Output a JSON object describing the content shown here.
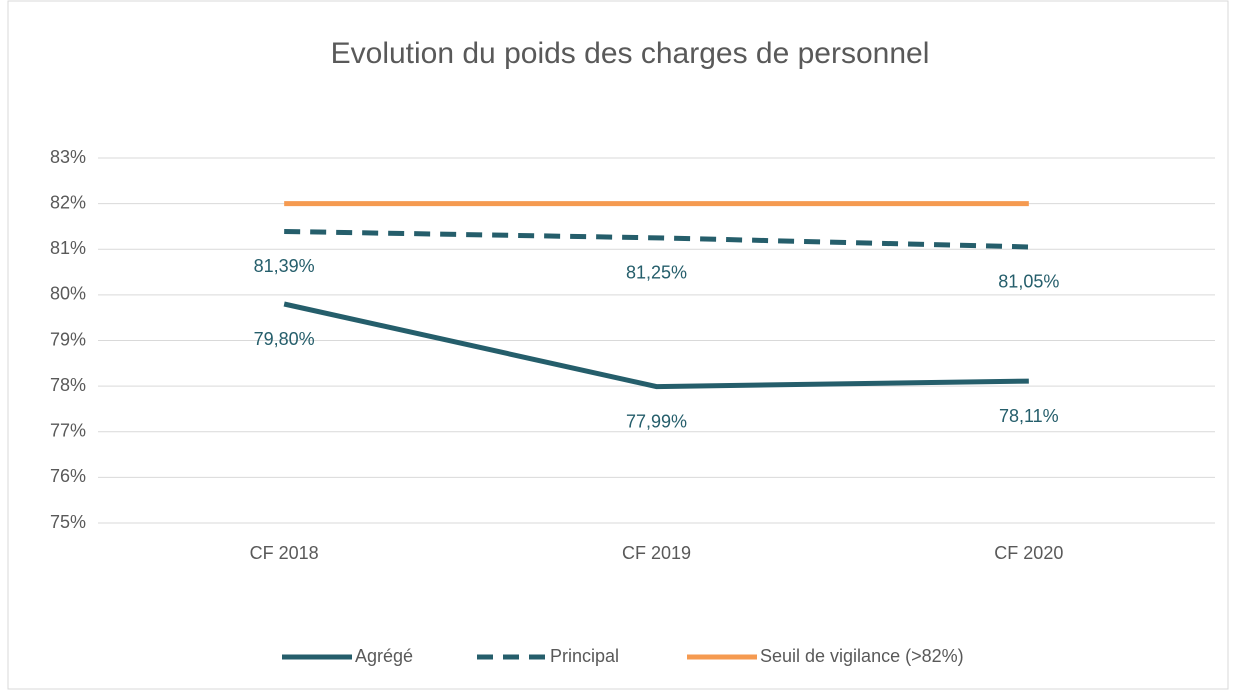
{
  "chart_data": {
    "type": "line",
    "title": "Evolution du poids des charges de personnel",
    "categories": [
      "CF 2018",
      "CF 2019",
      "CF 2020"
    ],
    "series": [
      {
        "name": "Agrégé",
        "color": "#255e6b",
        "dash": false,
        "values": [
          79.8,
          77.99,
          78.11
        ],
        "value_labels": [
          "79,80%",
          "77,99%",
          "78,11%"
        ]
      },
      {
        "name": "Principal",
        "color": "#255e6b",
        "dash": true,
        "values": [
          81.39,
          81.25,
          81.05
        ],
        "value_labels": [
          "81,39%",
          "81,25%",
          "81,05%"
        ]
      },
      {
        "name": "Seuil de vigilance (>82%)",
        "color": "#f59a50",
        "dash": false,
        "values": [
          82,
          82,
          82
        ]
      }
    ],
    "ylim": [
      75,
      83
    ],
    "yticks": [
      {
        "value": 75,
        "label": "75%"
      },
      {
        "value": 76,
        "label": "76%"
      },
      {
        "value": 77,
        "label": "77%"
      },
      {
        "value": 78,
        "label": "78%"
      },
      {
        "value": 79,
        "label": "79%"
      },
      {
        "value": 80,
        "label": "80%"
      },
      {
        "value": 81,
        "label": "81%"
      },
      {
        "value": 82,
        "label": "82%"
      },
      {
        "value": 83,
        "label": "83%"
      }
    ],
    "grid": true,
    "legend": "bottom"
  }
}
